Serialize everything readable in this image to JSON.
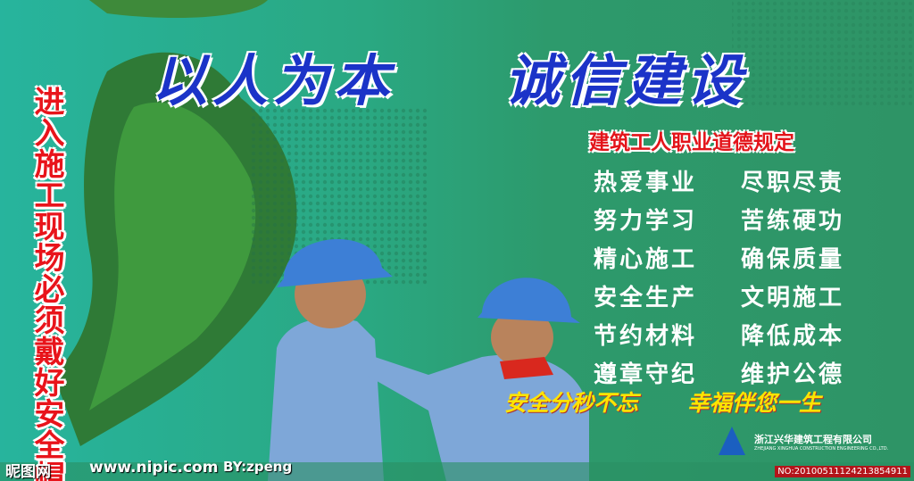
{
  "poster": {
    "vertical_slogan": "进入施工现场必须戴好安全帽",
    "title": [
      "以人为本",
      "诚信建设"
    ],
    "subtitle": "建筑工人职业道德规定",
    "rules": [
      [
        "热爱事业",
        "尽职尽责"
      ],
      [
        "努力学习",
        "苦练硬功"
      ],
      [
        "精心施工",
        "确保质量"
      ],
      [
        "安全生产",
        "文明施工"
      ],
      [
        "节约材料",
        "降低成本"
      ],
      [
        "遵章守纪",
        "维护公德"
      ]
    ],
    "slogan": [
      "安全分秒不忘",
      "幸福伴您一生"
    ],
    "company": {
      "name_cn": "浙江兴华建筑工程有限公司",
      "name_en": "ZHEJIANG XINGHUA CONSTRUCTION ENGINEERING CO.,LTD."
    }
  },
  "watermark": {
    "site": "昵图网",
    "url": "www.nipic.com",
    "author": "BY:zpeng",
    "id": "NO:20100511124213854911"
  }
}
